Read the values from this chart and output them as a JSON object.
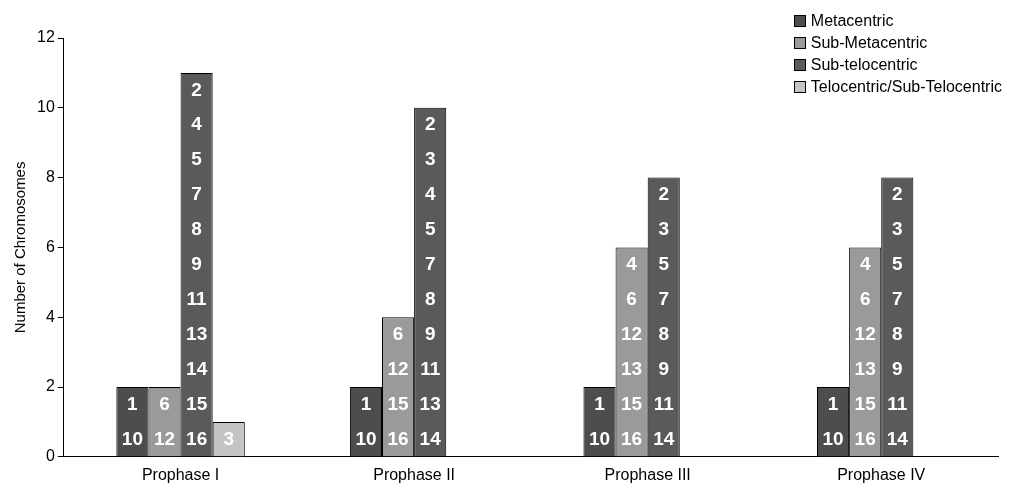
{
  "chart_data": {
    "type": "bar",
    "ylabel": "Number of Chromosomes",
    "categories": [
      "Prophase I",
      "Prophase II",
      "Prophase III",
      "Prophase IV"
    ],
    "series": [
      {
        "name": "Metacentric",
        "color": "#4d4d4d",
        "values": [
          2,
          2,
          2,
          2
        ]
      },
      {
        "name": "Sub-Metacentric",
        "color": "#9a9a9a",
        "values": [
          2,
          4,
          6,
          6
        ]
      },
      {
        "name": "Sub-telocentric",
        "color": "#5a5a5a",
        "values": [
          11,
          10,
          8,
          8
        ]
      },
      {
        "name": "Telocentric/Sub-Telocentric",
        "color": "#c4c4c4",
        "values": [
          1,
          0,
          0,
          0
        ]
      }
    ],
    "annotations": [
      "1\n10",
      "1\n10",
      "1\n10",
      "1\n10",
      "6\n12",
      "6\n12\n15\n16",
      "4\n6\n12\n13\n15\n16",
      "4\n6\n12\n13\n15\n16",
      "2\n4\n5\n7\n8\n9\n11\n13\n14\n15\n16",
      "2\n3\n4\n5\n7\n8\n9\n11\n13\n14",
      "2\n3\n5\n7\n8\n9\n11\n14",
      "2\n3\n5\n7\n8\n9\n11\n14",
      "3"
    ],
    "ylim": [
      0,
      12
    ],
    "yticks": [
      0,
      2,
      4,
      6,
      8,
      10,
      12
    ],
    "grid": false,
    "legend": "top right"
  }
}
